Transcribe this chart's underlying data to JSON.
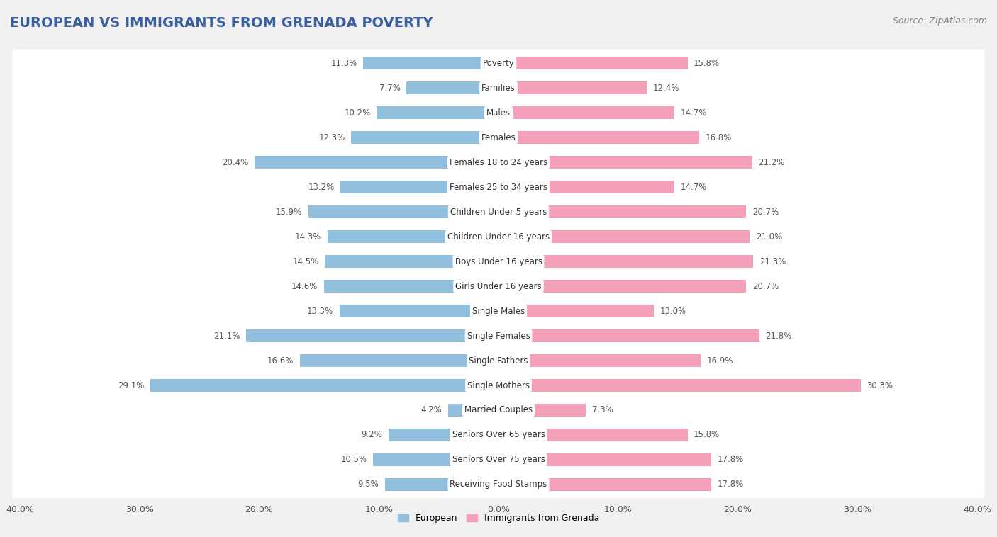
{
  "title": "European vs Immigrants from Grenada Poverty",
  "source": "Source: ZipAtlas.com",
  "categories": [
    "Poverty",
    "Families",
    "Males",
    "Females",
    "Females 18 to 24 years",
    "Females 25 to 34 years",
    "Children Under 5 years",
    "Children Under 16 years",
    "Boys Under 16 years",
    "Girls Under 16 years",
    "Single Males",
    "Single Females",
    "Single Fathers",
    "Single Mothers",
    "Married Couples",
    "Seniors Over 65 years",
    "Seniors Over 75 years",
    "Receiving Food Stamps"
  ],
  "european_values": [
    11.3,
    7.7,
    10.2,
    12.3,
    20.4,
    13.2,
    15.9,
    14.3,
    14.5,
    14.6,
    13.3,
    21.1,
    16.6,
    29.1,
    4.2,
    9.2,
    10.5,
    9.5
  ],
  "grenada_values": [
    15.8,
    12.4,
    14.7,
    16.8,
    21.2,
    14.7,
    20.7,
    21.0,
    21.3,
    20.7,
    13.0,
    21.8,
    16.9,
    30.3,
    7.3,
    15.8,
    17.8,
    17.8
  ],
  "european_color": "#92bfdd",
  "grenada_color": "#f4a0b8",
  "european_label": "European",
  "grenada_label": "Immigrants from Grenada",
  "xlim": 40.0,
  "background_color": "#f0f0f0",
  "bar_background_color": "#ffffff",
  "title_fontsize": 14,
  "label_fontsize": 8.5,
  "tick_fontsize": 9,
  "source_fontsize": 9,
  "title_color": "#3a5fa0",
  "value_color": "#555555"
}
